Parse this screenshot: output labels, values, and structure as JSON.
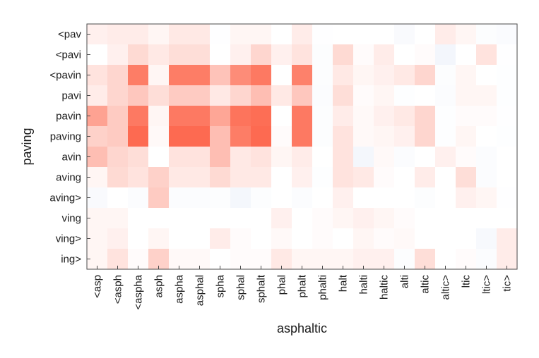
{
  "chart_data": {
    "type": "heatmap",
    "title": "",
    "xlabel": "asphaltic",
    "ylabel": "paving",
    "x_categories": [
      "<asp",
      "<asph",
      "<aspha",
      "asph",
      "aspha",
      "asphal",
      "spha",
      "sphal",
      "sphalt",
      "phal",
      "phalt",
      "phalti",
      "halt",
      "halti",
      "haltic",
      "alti",
      "altic",
      "altic>",
      "ltic",
      "ltic>",
      "tic>"
    ],
    "y_categories": [
      "<pav",
      "<pavi",
      "<pavin",
      "pavi",
      "pavin",
      "paving",
      "avin",
      "aving",
      "aving>",
      "ving",
      "ving>",
      "ing>"
    ],
    "color_scale": {
      "min": -1,
      "max": 1,
      "negative_color": "#c9d6f0",
      "zero_color": "#ffffff",
      "positive_color": "#fc4525"
    },
    "grid": false,
    "values": [
      [
        0.08,
        0.1,
        0.1,
        0.05,
        0.12,
        0.12,
        -0.02,
        0.05,
        0.05,
        0.0,
        0.1,
        -0.02,
        0.0,
        0.0,
        0.0,
        -0.12,
        0.0,
        0.1,
        0.05,
        -0.05,
        -0.1
      ],
      [
        0.0,
        0.08,
        0.2,
        0.12,
        0.18,
        0.18,
        0.0,
        0.08,
        0.22,
        0.08,
        0.15,
        -0.05,
        0.2,
        0.02,
        0.1,
        0.0,
        0.02,
        -0.22,
        0.0,
        0.15,
        -0.02
      ],
      [
        0.15,
        0.22,
        0.7,
        0.05,
        0.7,
        0.7,
        0.32,
        0.62,
        0.72,
        0.0,
        0.68,
        -0.05,
        0.12,
        0.05,
        0.08,
        0.12,
        0.22,
        -0.05,
        0.05,
        0.0,
        -0.03
      ],
      [
        0.1,
        0.22,
        0.3,
        0.18,
        0.28,
        0.28,
        0.12,
        0.22,
        0.35,
        0.12,
        0.3,
        -0.08,
        0.18,
        0.02,
        0.05,
        -0.03,
        0.0,
        -0.08,
        0.05,
        0.05,
        -0.03
      ],
      [
        0.5,
        0.28,
        0.72,
        0.05,
        0.72,
        0.72,
        0.48,
        0.75,
        0.78,
        0.0,
        0.72,
        -0.05,
        0.1,
        0.03,
        0.08,
        0.12,
        0.22,
        -0.03,
        0.02,
        0.02,
        -0.02
      ],
      [
        0.25,
        0.28,
        0.8,
        0.03,
        0.8,
        0.8,
        0.35,
        0.7,
        0.8,
        0.02,
        0.72,
        -0.05,
        0.15,
        0.03,
        0.05,
        0.08,
        0.22,
        -0.03,
        0.05,
        0.0,
        -0.03
      ],
      [
        0.35,
        0.22,
        0.18,
        0.0,
        0.15,
        0.15,
        0.35,
        0.12,
        0.15,
        0.05,
        0.1,
        0.0,
        0.15,
        -0.2,
        0.03,
        -0.08,
        0.0,
        0.08,
        0.02,
        -0.08,
        0.0
      ],
      [
        0.05,
        0.2,
        0.15,
        0.25,
        0.12,
        0.12,
        0.2,
        0.12,
        0.12,
        0.0,
        0.08,
        -0.03,
        0.15,
        0.12,
        0.02,
        0.0,
        0.1,
        0.0,
        0.18,
        -0.08,
        0.0
      ],
      [
        -0.12,
        0.0,
        -0.08,
        0.28,
        -0.08,
        -0.08,
        -0.05,
        -0.2,
        -0.05,
        0.0,
        -0.08,
        0.0,
        0.08,
        0.0,
        0.0,
        0.0,
        -0.05,
        0.0,
        0.08,
        0.05,
        -0.02
      ],
      [
        0.05,
        0.05,
        0.0,
        0.0,
        0.0,
        0.0,
        0.0,
        0.0,
        0.0,
        0.08,
        0.0,
        0.02,
        0.05,
        0.08,
        0.05,
        0.02,
        0.0,
        0.0,
        0.0,
        0.0,
        0.0
      ],
      [
        0.05,
        0.08,
        0.0,
        0.05,
        0.0,
        0.0,
        0.1,
        0.02,
        0.0,
        0.03,
        0.0,
        0.02,
        0.0,
        0.05,
        0.02,
        0.03,
        0.0,
        0.0,
        0.0,
        -0.15,
        0.1
      ],
      [
        0.05,
        0.15,
        0.02,
        0.25,
        0.03,
        0.03,
        0.0,
        0.02,
        0.02,
        0.12,
        0.05,
        0.05,
        0.05,
        0.08,
        0.08,
        -0.05,
        0.18,
        0.0,
        0.02,
        -0.08,
        0.1
      ]
    ]
  }
}
